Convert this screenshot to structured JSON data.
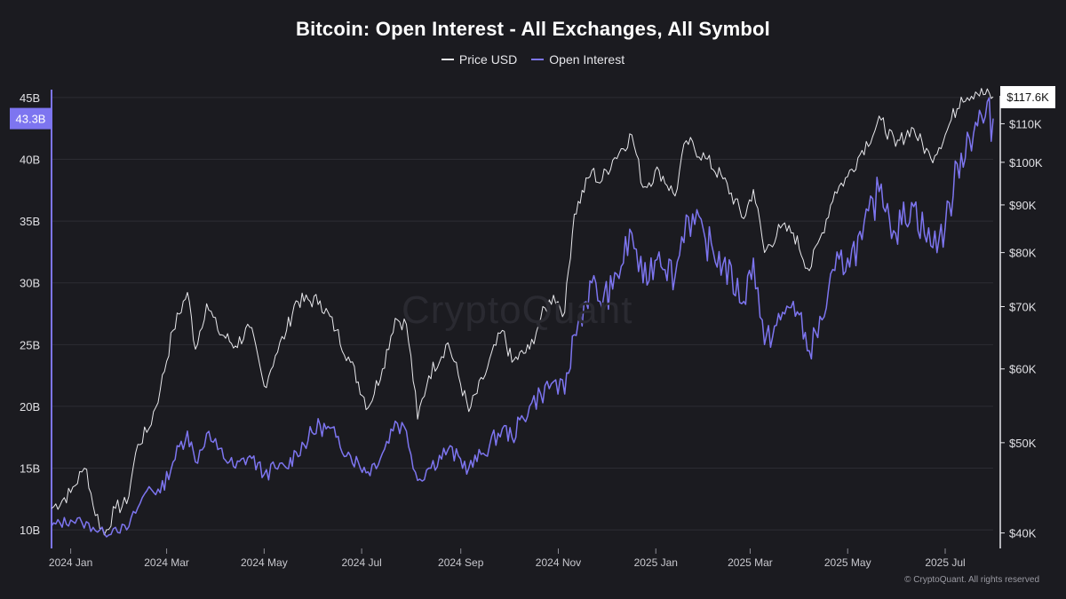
{
  "chart_data": {
    "type": "line",
    "title": "Bitcoin: Open Interest - All Exchanges, All Symbol",
    "legend_position": "top-center",
    "grid": true,
    "x_ticks": [
      "2024 Jan",
      "2024 Mar",
      "2024 May",
      "2024 Jul",
      "2024 Sep",
      "2024 Nov",
      "2025 Jan",
      "2025 Mar",
      "2025 May",
      "2025 Jul"
    ],
    "x_range": [
      "2023-12-20",
      "2025-07-31"
    ],
    "left_axis": {
      "ticks": [
        "10B",
        "15B",
        "20B",
        "25B",
        "30B",
        "35B",
        "40B",
        "45B"
      ],
      "tick_values": [
        10,
        15,
        20,
        25,
        30,
        35,
        40,
        45
      ],
      "unit": "B",
      "range": [
        8.5,
        46
      ],
      "current_label": "43.3B"
    },
    "right_axis": {
      "ticks": [
        "$40K",
        "$50K",
        "$60K",
        "$70K",
        "$80K",
        "$90K",
        "$100K",
        "$110K"
      ],
      "tick_values": [
        40,
        50,
        60,
        70,
        80,
        90,
        100,
        110
      ],
      "unit": "$K",
      "scale": "log",
      "range": [
        38.5,
        121
      ],
      "current_label": "$117.6K"
    },
    "series": [
      {
        "name": "Price USD",
        "axis": "right",
        "color": "#e8e8ec",
        "points": [
          [
            "2023-12-20",
            42.5
          ],
          [
            "2024-01-01",
            44.2
          ],
          [
            "2024-01-08",
            46.5
          ],
          [
            "2024-01-11",
            46.8
          ],
          [
            "2024-01-15",
            42.8
          ],
          [
            "2024-01-22",
            39.8
          ],
          [
            "2024-01-29",
            42.5
          ],
          [
            "2024-02-05",
            43.0
          ],
          [
            "2024-02-12",
            49.8
          ],
          [
            "2024-02-19",
            51.8
          ],
          [
            "2024-02-26",
            57.0
          ],
          [
            "2024-03-05",
            66.0
          ],
          [
            "2024-03-14",
            72.5
          ],
          [
            "2024-03-19",
            63.0
          ],
          [
            "2024-03-26",
            70.5
          ],
          [
            "2024-04-02",
            66.0
          ],
          [
            "2024-04-13",
            63.5
          ],
          [
            "2024-04-22",
            66.5
          ],
          [
            "2024-05-01",
            57.5
          ],
          [
            "2024-05-08",
            62.0
          ],
          [
            "2024-05-15",
            66.0
          ],
          [
            "2024-05-21",
            71.0
          ],
          [
            "2024-06-05",
            71.0
          ],
          [
            "2024-06-15",
            66.0
          ],
          [
            "2024-06-24",
            61.0
          ],
          [
            "2024-07-05",
            54.5
          ],
          [
            "2024-07-14",
            60.0
          ],
          [
            "2024-07-22",
            68.0
          ],
          [
            "2024-07-29",
            67.0
          ],
          [
            "2024-08-05",
            53.0
          ],
          [
            "2024-08-12",
            59.0
          ],
          [
            "2024-08-24",
            64.0
          ],
          [
            "2024-09-06",
            54.0
          ],
          [
            "2024-09-15",
            58.5
          ],
          [
            "2024-09-27",
            66.0
          ],
          [
            "2024-10-03",
            61.0
          ],
          [
            "2024-10-14",
            63.0
          ],
          [
            "2024-10-21",
            68.0
          ],
          [
            "2024-10-29",
            72.0
          ],
          [
            "2024-11-05",
            69.0
          ],
          [
            "2024-11-11",
            88.0
          ],
          [
            "2024-11-22",
            98.0
          ],
          [
            "2024-11-27",
            95.0
          ],
          [
            "2024-12-05",
            100.5
          ],
          [
            "2024-12-17",
            107.0
          ],
          [
            "2024-12-24",
            94.0
          ],
          [
            "2025-01-03",
            98.0
          ],
          [
            "2025-01-13",
            92.0
          ],
          [
            "2025-01-20",
            105.5
          ],
          [
            "2025-02-01",
            101.0
          ],
          [
            "2025-02-12",
            96.0
          ],
          [
            "2025-02-25",
            87.0
          ],
          [
            "2025-03-03",
            93.5
          ],
          [
            "2025-03-10",
            80.0
          ],
          [
            "2025-03-20",
            85.0
          ],
          [
            "2025-03-28",
            84.0
          ],
          [
            "2025-04-07",
            76.5
          ],
          [
            "2025-04-15",
            84.0
          ],
          [
            "2025-04-23",
            93.0
          ],
          [
            "2025-05-01",
            96.5
          ],
          [
            "2025-05-10",
            103.0
          ],
          [
            "2025-05-22",
            111.0
          ],
          [
            "2025-05-31",
            104.0
          ],
          [
            "2025-06-10",
            109.0
          ],
          [
            "2025-06-22",
            101.0
          ],
          [
            "2025-07-01",
            107.0
          ],
          [
            "2025-07-11",
            117.5
          ],
          [
            "2025-07-20",
            119.0
          ],
          [
            "2025-07-31",
            117.6
          ]
        ]
      },
      {
        "name": "Open Interest",
        "axis": "left",
        "color": "#7d75f0",
        "points": [
          [
            "2023-12-20",
            10.3
          ],
          [
            "2024-01-01",
            10.8
          ],
          [
            "2024-01-08",
            10.6
          ],
          [
            "2024-01-15",
            10.2
          ],
          [
            "2024-01-22",
            9.7
          ],
          [
            "2024-01-29",
            10.2
          ],
          [
            "2024-02-05",
            10.0
          ],
          [
            "2024-02-12",
            11.8
          ],
          [
            "2024-02-19",
            13.5
          ],
          [
            "2024-02-26",
            13.0
          ],
          [
            "2024-03-05",
            15.5
          ],
          [
            "2024-03-14",
            18.0
          ],
          [
            "2024-03-19",
            15.5
          ],
          [
            "2024-03-26",
            17.8
          ],
          [
            "2024-04-02",
            16.5
          ],
          [
            "2024-04-13",
            15.0
          ],
          [
            "2024-04-22",
            16.0
          ],
          [
            "2024-05-01",
            14.5
          ],
          [
            "2024-05-08",
            15.0
          ],
          [
            "2024-05-15",
            15.0
          ],
          [
            "2024-05-21",
            16.3
          ],
          [
            "2024-06-05",
            18.5
          ],
          [
            "2024-06-15",
            17.5
          ],
          [
            "2024-06-24",
            16.0
          ],
          [
            "2024-07-05",
            14.7
          ],
          [
            "2024-07-14",
            16.2
          ],
          [
            "2024-07-22",
            18.8
          ],
          [
            "2024-07-29",
            18.0
          ],
          [
            "2024-08-05",
            14.0
          ],
          [
            "2024-08-12",
            15.0
          ],
          [
            "2024-08-24",
            16.5
          ],
          [
            "2024-09-06",
            15.0
          ],
          [
            "2024-09-15",
            16.2
          ],
          [
            "2024-09-27",
            18.2
          ],
          [
            "2024-10-03",
            17.5
          ],
          [
            "2024-10-14",
            20.0
          ],
          [
            "2024-10-21",
            21.0
          ],
          [
            "2024-10-29",
            22.0
          ],
          [
            "2024-11-05",
            21.0
          ],
          [
            "2024-11-11",
            25.8
          ],
          [
            "2024-11-22",
            30.0
          ],
          [
            "2024-11-27",
            28.5
          ],
          [
            "2024-12-05",
            29.5
          ],
          [
            "2024-12-17",
            34.0
          ],
          [
            "2024-12-24",
            30.0
          ],
          [
            "2025-01-03",
            32.5
          ],
          [
            "2025-01-13",
            30.5
          ],
          [
            "2025-01-20",
            35.5
          ],
          [
            "2025-02-01",
            33.5
          ],
          [
            "2025-02-12",
            31.5
          ],
          [
            "2025-02-25",
            28.5
          ],
          [
            "2025-03-03",
            32.0
          ],
          [
            "2025-03-10",
            25.0
          ],
          [
            "2025-03-20",
            27.0
          ],
          [
            "2025-03-28",
            28.5
          ],
          [
            "2025-04-07",
            24.5
          ],
          [
            "2025-04-15",
            27.0
          ],
          [
            "2025-04-23",
            31.0
          ],
          [
            "2025-05-01",
            32.0
          ],
          [
            "2025-05-10",
            33.5
          ],
          [
            "2025-05-22",
            38.0
          ],
          [
            "2025-05-31",
            34.0
          ],
          [
            "2025-06-10",
            36.5
          ],
          [
            "2025-06-22",
            33.0
          ],
          [
            "2025-07-01",
            34.5
          ],
          [
            "2025-07-11",
            40.5
          ],
          [
            "2025-07-20",
            43.0
          ],
          [
            "2025-07-31",
            43.3
          ]
        ]
      }
    ]
  },
  "watermark": "CryptoQuant",
  "copyright": "© CryptoQuant. All rights reserved"
}
